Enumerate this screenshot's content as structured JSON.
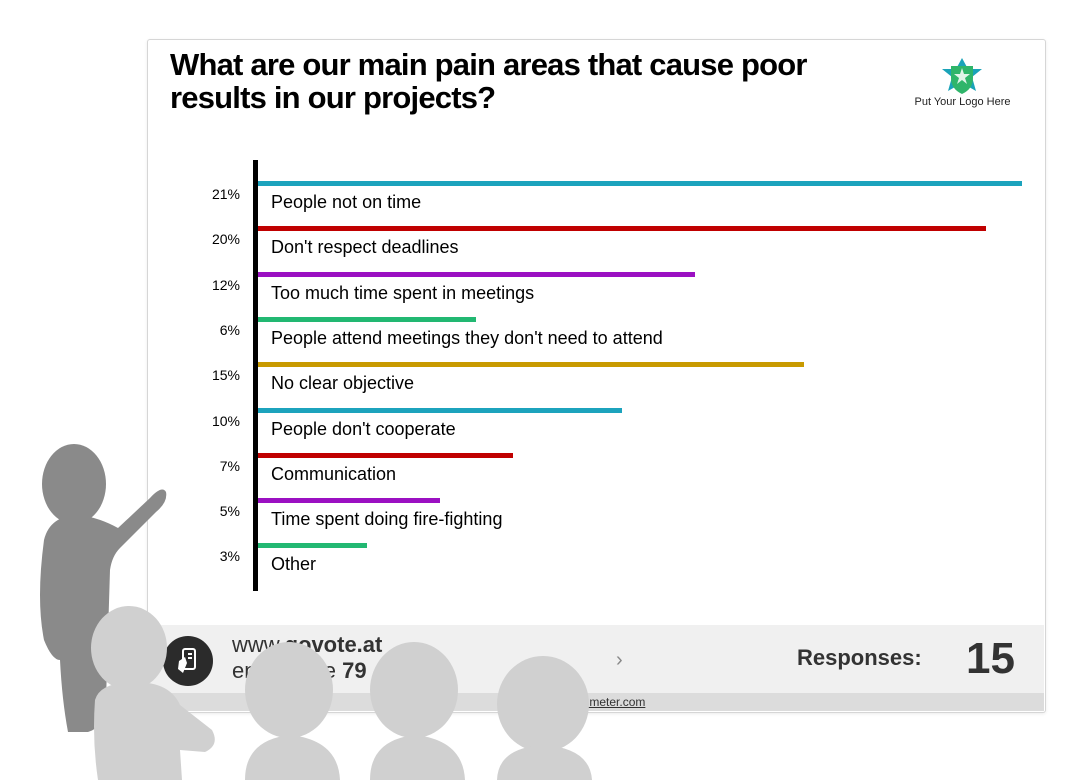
{
  "slide": {
    "title": "What are our main pain areas that cause poor results in our projects?",
    "logo_text": "Put Your Logo Here",
    "logo_icon": "shield-star-icon",
    "logo_colors": [
      "#1aa3b8",
      "#2fb56a"
    ]
  },
  "chart_data": {
    "type": "bar",
    "orientation": "horizontal",
    "title": "What are our main pain areas that cause poor results in our projects?",
    "categories": [
      "People not on time",
      "Don't respect deadlines",
      "Too much time spent in meetings",
      "People attend meetings they don't need to attend",
      "No clear objective",
      "People don't cooperate",
      "Communication",
      "Time spent doing fire-fighting",
      "Other"
    ],
    "values": [
      21,
      20,
      12,
      6,
      15,
      10,
      7,
      5,
      3
    ],
    "value_labels": [
      "21%",
      "20%",
      "12%",
      "6%",
      "15%",
      "10%",
      "7%",
      "5%",
      "3%"
    ],
    "colors": [
      "#1ca3bd",
      "#c00000",
      "#9b10c2",
      "#22b872",
      "#c89a00",
      "#1ca3bd",
      "#c00000",
      "#9b10c2",
      "#22b872"
    ],
    "xlim": [
      0,
      21
    ],
    "unit": "%"
  },
  "footer": {
    "url_prefix": "www.",
    "url_main": "govote.at",
    "code_label": "enter code",
    "code_value": "79",
    "chevron": "›",
    "responses_label": "Responses:",
    "responses_count": "15",
    "credit": "mentimeter.com",
    "phone_icon": "phone-vote-icon"
  }
}
